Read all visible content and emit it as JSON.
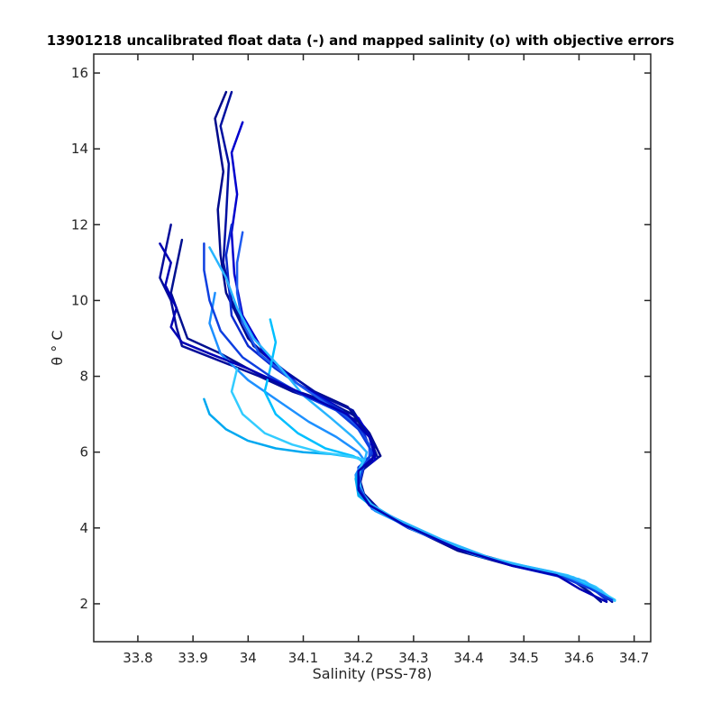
{
  "chart_data": {
    "type": "line",
    "title": "13901218 uncalibrated float data (-) and mapped salinity (o) with objective errors",
    "xlabel": "Salinity (PSS-78)",
    "ylabel": "θ ° C",
    "xlim": [
      33.72,
      34.73
    ],
    "ylim": [
      1,
      16.5
    ],
    "x_ticks": [
      "33.8",
      "33.9",
      "34",
      "34.1",
      "34.2",
      "34.3",
      "34.4",
      "34.5",
      "34.6",
      "34.7"
    ],
    "y_ticks": [
      "2",
      "4",
      "6",
      "8",
      "10",
      "12",
      "14",
      "16"
    ],
    "grid": false,
    "legend": "none",
    "color_ramp": [
      "#00008b",
      "#0000cd",
      "#0a46e6",
      "#1e90ff",
      "#00bfff",
      "#33ccff"
    ],
    "series": [
      {
        "color": "#000a8c",
        "points": [
          [
            33.96,
            15.5
          ],
          [
            33.94,
            14.8
          ],
          [
            33.955,
            13.4
          ],
          [
            33.945,
            12.4
          ],
          [
            33.95,
            11.2
          ],
          [
            33.96,
            10.2
          ],
          [
            34.0,
            9.0
          ],
          [
            34.05,
            8.3
          ],
          [
            34.12,
            7.6
          ],
          [
            34.18,
            7.2
          ],
          [
            34.22,
            6.5
          ],
          [
            34.24,
            5.9
          ],
          [
            34.21,
            5.6
          ],
          [
            34.2,
            5.0
          ],
          [
            34.22,
            4.6
          ],
          [
            34.28,
            4.1
          ],
          [
            34.38,
            3.4
          ],
          [
            34.48,
            3.0
          ],
          [
            34.57,
            2.75
          ],
          [
            34.62,
            2.5
          ],
          [
            34.65,
            2.1
          ]
        ]
      },
      {
        "color": "#0010a0",
        "points": [
          [
            33.97,
            15.5
          ],
          [
            33.95,
            14.6
          ],
          [
            33.965,
            13.6
          ],
          [
            33.96,
            12.2
          ],
          [
            33.955,
            11.0
          ],
          [
            33.97,
            10.0
          ],
          [
            34.01,
            8.8
          ],
          [
            34.07,
            8.1
          ],
          [
            34.13,
            7.5
          ],
          [
            34.19,
            7.1
          ],
          [
            34.22,
            6.4
          ],
          [
            34.235,
            5.85
          ],
          [
            34.205,
            5.5
          ],
          [
            34.2,
            5.0
          ],
          [
            34.225,
            4.55
          ],
          [
            34.3,
            4.0
          ],
          [
            34.4,
            3.35
          ],
          [
            34.5,
            2.95
          ],
          [
            34.58,
            2.7
          ],
          [
            34.63,
            2.4
          ],
          [
            34.66,
            2.05
          ]
        ]
      },
      {
        "color": "#0000cd",
        "points": [
          [
            33.99,
            14.7
          ],
          [
            33.97,
            13.9
          ],
          [
            33.98,
            12.8
          ],
          [
            33.97,
            11.8
          ],
          [
            33.975,
            10.7
          ],
          [
            33.99,
            9.6
          ],
          [
            34.03,
            8.6
          ],
          [
            34.09,
            7.8
          ],
          [
            34.15,
            7.3
          ],
          [
            34.2,
            6.9
          ],
          [
            34.225,
            6.3
          ],
          [
            34.23,
            5.8
          ],
          [
            34.2,
            5.5
          ],
          [
            34.205,
            4.9
          ],
          [
            34.235,
            4.5
          ],
          [
            34.31,
            3.9
          ],
          [
            34.41,
            3.3
          ],
          [
            34.51,
            2.95
          ],
          [
            34.59,
            2.65
          ],
          [
            34.64,
            2.35
          ],
          [
            34.66,
            2.1
          ]
        ]
      },
      {
        "color": "#050d9a",
        "points": [
          [
            33.86,
            12.0
          ],
          [
            33.85,
            11.3
          ],
          [
            33.84,
            10.6
          ],
          [
            33.86,
            10.0
          ],
          [
            33.87,
            9.3
          ],
          [
            33.88,
            8.8
          ],
          [
            33.95,
            8.4
          ],
          [
            34.02,
            8.0
          ],
          [
            34.08,
            7.6
          ],
          [
            34.14,
            7.3
          ],
          [
            34.2,
            6.8
          ],
          [
            34.23,
            6.2
          ],
          [
            34.225,
            5.8
          ],
          [
            34.2,
            5.4
          ],
          [
            34.21,
            4.9
          ],
          [
            34.24,
            4.45
          ],
          [
            34.32,
            3.85
          ],
          [
            34.42,
            3.3
          ],
          [
            34.52,
            2.9
          ],
          [
            34.6,
            2.6
          ],
          [
            34.64,
            2.3
          ]
        ]
      },
      {
        "color": "#001090",
        "points": [
          [
            33.88,
            11.6
          ],
          [
            33.87,
            10.9
          ],
          [
            33.86,
            10.2
          ],
          [
            33.875,
            9.6
          ],
          [
            33.89,
            9.0
          ],
          [
            33.95,
            8.6
          ],
          [
            34.0,
            8.2
          ],
          [
            34.07,
            7.7
          ],
          [
            34.13,
            7.4
          ],
          [
            34.19,
            7.0
          ],
          [
            34.22,
            6.4
          ],
          [
            34.23,
            5.9
          ],
          [
            34.2,
            5.5
          ],
          [
            34.205,
            5.0
          ],
          [
            34.23,
            4.5
          ],
          [
            34.3,
            4.0
          ],
          [
            34.4,
            3.35
          ],
          [
            34.5,
            2.95
          ],
          [
            34.58,
            2.7
          ],
          [
            34.62,
            2.3
          ],
          [
            34.64,
            2.05
          ]
        ]
      },
      {
        "color": "#0a2ad0",
        "points": [
          [
            33.97,
            12.0
          ],
          [
            33.96,
            11.2
          ],
          [
            33.965,
            10.4
          ],
          [
            33.97,
            9.6
          ],
          [
            34.0,
            8.8
          ],
          [
            34.05,
            8.2
          ],
          [
            34.11,
            7.6
          ],
          [
            34.17,
            7.1
          ],
          [
            34.21,
            6.5
          ],
          [
            34.225,
            5.95
          ],
          [
            34.2,
            5.6
          ],
          [
            34.2,
            5.0
          ],
          [
            34.22,
            4.6
          ],
          [
            34.29,
            4.0
          ],
          [
            34.39,
            3.4
          ],
          [
            34.49,
            3.0
          ],
          [
            34.57,
            2.75
          ],
          [
            34.62,
            2.45
          ],
          [
            34.65,
            2.1
          ]
        ]
      },
      {
        "color": "#1e5bf0",
        "points": [
          [
            33.99,
            11.8
          ],
          [
            33.98,
            11.0
          ],
          [
            33.98,
            10.2
          ],
          [
            33.99,
            9.4
          ],
          [
            34.02,
            8.6
          ],
          [
            34.08,
            7.9
          ],
          [
            34.14,
            7.3
          ],
          [
            34.19,
            6.8
          ],
          [
            34.22,
            6.2
          ],
          [
            34.22,
            5.85
          ],
          [
            34.2,
            5.5
          ],
          [
            34.205,
            4.95
          ],
          [
            34.225,
            4.5
          ],
          [
            34.3,
            3.95
          ],
          [
            34.4,
            3.35
          ],
          [
            34.5,
            2.95
          ],
          [
            34.58,
            2.7
          ],
          [
            34.63,
            2.4
          ],
          [
            34.66,
            2.1
          ]
        ]
      },
      {
        "color": "#1e90ff",
        "points": [
          [
            33.94,
            10.2
          ],
          [
            33.93,
            9.4
          ],
          [
            33.95,
            8.6
          ],
          [
            34.0,
            7.9
          ],
          [
            34.06,
            7.3
          ],
          [
            34.11,
            6.8
          ],
          [
            34.16,
            6.4
          ],
          [
            34.2,
            6.0
          ],
          [
            34.21,
            5.8
          ],
          [
            34.195,
            5.4
          ],
          [
            34.2,
            4.9
          ],
          [
            34.23,
            4.45
          ],
          [
            34.31,
            3.9
          ],
          [
            34.41,
            3.3
          ],
          [
            34.51,
            2.95
          ],
          [
            34.59,
            2.65
          ],
          [
            34.63,
            2.35
          ],
          [
            34.66,
            2.1
          ]
        ]
      },
      {
        "color": "#00a8f0",
        "points": [
          [
            33.92,
            7.4
          ],
          [
            33.93,
            7.0
          ],
          [
            33.96,
            6.6
          ],
          [
            34.0,
            6.3
          ],
          [
            34.05,
            6.1
          ],
          [
            34.1,
            6.0
          ],
          [
            34.15,
            5.95
          ],
          [
            34.2,
            5.85
          ],
          [
            34.21,
            5.7
          ],
          [
            34.195,
            5.3
          ],
          [
            34.2,
            4.85
          ],
          [
            34.24,
            4.4
          ],
          [
            34.32,
            3.85
          ],
          [
            34.42,
            3.25
          ],
          [
            34.52,
            2.9
          ],
          [
            34.6,
            2.65
          ],
          [
            34.64,
            2.3
          ],
          [
            34.665,
            2.08
          ]
        ]
      },
      {
        "color": "#00bfff",
        "points": [
          [
            34.04,
            9.5
          ],
          [
            34.05,
            8.9
          ],
          [
            34.04,
            8.2
          ],
          [
            34.03,
            7.6
          ],
          [
            34.05,
            7.0
          ],
          [
            34.09,
            6.5
          ],
          [
            34.14,
            6.1
          ],
          [
            34.19,
            5.9
          ],
          [
            34.21,
            5.75
          ],
          [
            34.2,
            5.4
          ],
          [
            34.205,
            4.9
          ],
          [
            34.235,
            4.45
          ],
          [
            34.31,
            3.9
          ],
          [
            34.41,
            3.3
          ],
          [
            34.51,
            2.95
          ],
          [
            34.59,
            2.7
          ],
          [
            34.63,
            2.4
          ],
          [
            34.665,
            2.1
          ]
        ]
      },
      {
        "color": "#33ccff",
        "points": [
          [
            33.98,
            8.2
          ],
          [
            33.97,
            7.6
          ],
          [
            33.99,
            7.0
          ],
          [
            34.03,
            6.5
          ],
          [
            34.08,
            6.2
          ],
          [
            34.13,
            6.0
          ],
          [
            34.18,
            5.9
          ],
          [
            34.21,
            5.8
          ],
          [
            34.2,
            5.45
          ],
          [
            34.205,
            4.95
          ],
          [
            34.23,
            4.5
          ],
          [
            34.3,
            3.95
          ],
          [
            34.4,
            3.35
          ],
          [
            34.5,
            3.0
          ],
          [
            34.58,
            2.75
          ],
          [
            34.63,
            2.45
          ],
          [
            34.665,
            2.08
          ]
        ]
      },
      {
        "color": "#28b4ff",
        "points": [
          [
            33.93,
            11.4
          ],
          [
            33.96,
            10.6
          ],
          [
            33.98,
            9.8
          ],
          [
            34.01,
            9.0
          ],
          [
            34.06,
            8.2
          ],
          [
            34.1,
            7.5
          ],
          [
            34.15,
            6.9
          ],
          [
            34.19,
            6.4
          ],
          [
            34.215,
            6.0
          ],
          [
            34.21,
            5.7
          ],
          [
            34.2,
            5.2
          ],
          [
            34.215,
            4.7
          ],
          [
            34.26,
            4.3
          ],
          [
            34.35,
            3.7
          ],
          [
            34.45,
            3.15
          ],
          [
            34.55,
            2.85
          ],
          [
            34.61,
            2.6
          ],
          [
            34.645,
            2.25
          ]
        ]
      },
      {
        "color": "#0e3fe0",
        "points": [
          [
            33.92,
            11.5
          ],
          [
            33.92,
            10.8
          ],
          [
            33.93,
            10.0
          ],
          [
            33.95,
            9.2
          ],
          [
            33.99,
            8.5
          ],
          [
            34.04,
            8.0
          ],
          [
            34.1,
            7.5
          ],
          [
            34.16,
            7.1
          ],
          [
            34.2,
            6.6
          ],
          [
            34.225,
            6.0
          ],
          [
            34.21,
            5.65
          ],
          [
            34.2,
            5.1
          ],
          [
            34.22,
            4.6
          ],
          [
            34.28,
            4.1
          ],
          [
            34.38,
            3.45
          ],
          [
            34.48,
            3.0
          ],
          [
            34.57,
            2.7
          ],
          [
            34.62,
            2.4
          ],
          [
            34.66,
            2.1
          ]
        ]
      },
      {
        "color": "#0000b4",
        "points": [
          [
            33.84,
            11.5
          ],
          [
            33.86,
            11.0
          ],
          [
            33.85,
            10.4
          ],
          [
            33.87,
            9.8
          ],
          [
            33.86,
            9.3
          ],
          [
            33.88,
            8.9
          ],
          [
            33.93,
            8.6
          ],
          [
            34.0,
            8.2
          ],
          [
            34.06,
            7.8
          ],
          [
            34.12,
            7.4
          ],
          [
            34.18,
            7.0
          ],
          [
            34.22,
            6.4
          ],
          [
            34.23,
            5.9
          ],
          [
            34.2,
            5.5
          ],
          [
            34.2,
            5.0
          ],
          [
            34.22,
            4.6
          ],
          [
            34.28,
            4.1
          ],
          [
            34.38,
            3.45
          ],
          [
            34.48,
            3.0
          ],
          [
            34.56,
            2.75
          ],
          [
            34.6,
            2.4
          ],
          [
            34.65,
            2.05
          ]
        ]
      }
    ]
  }
}
